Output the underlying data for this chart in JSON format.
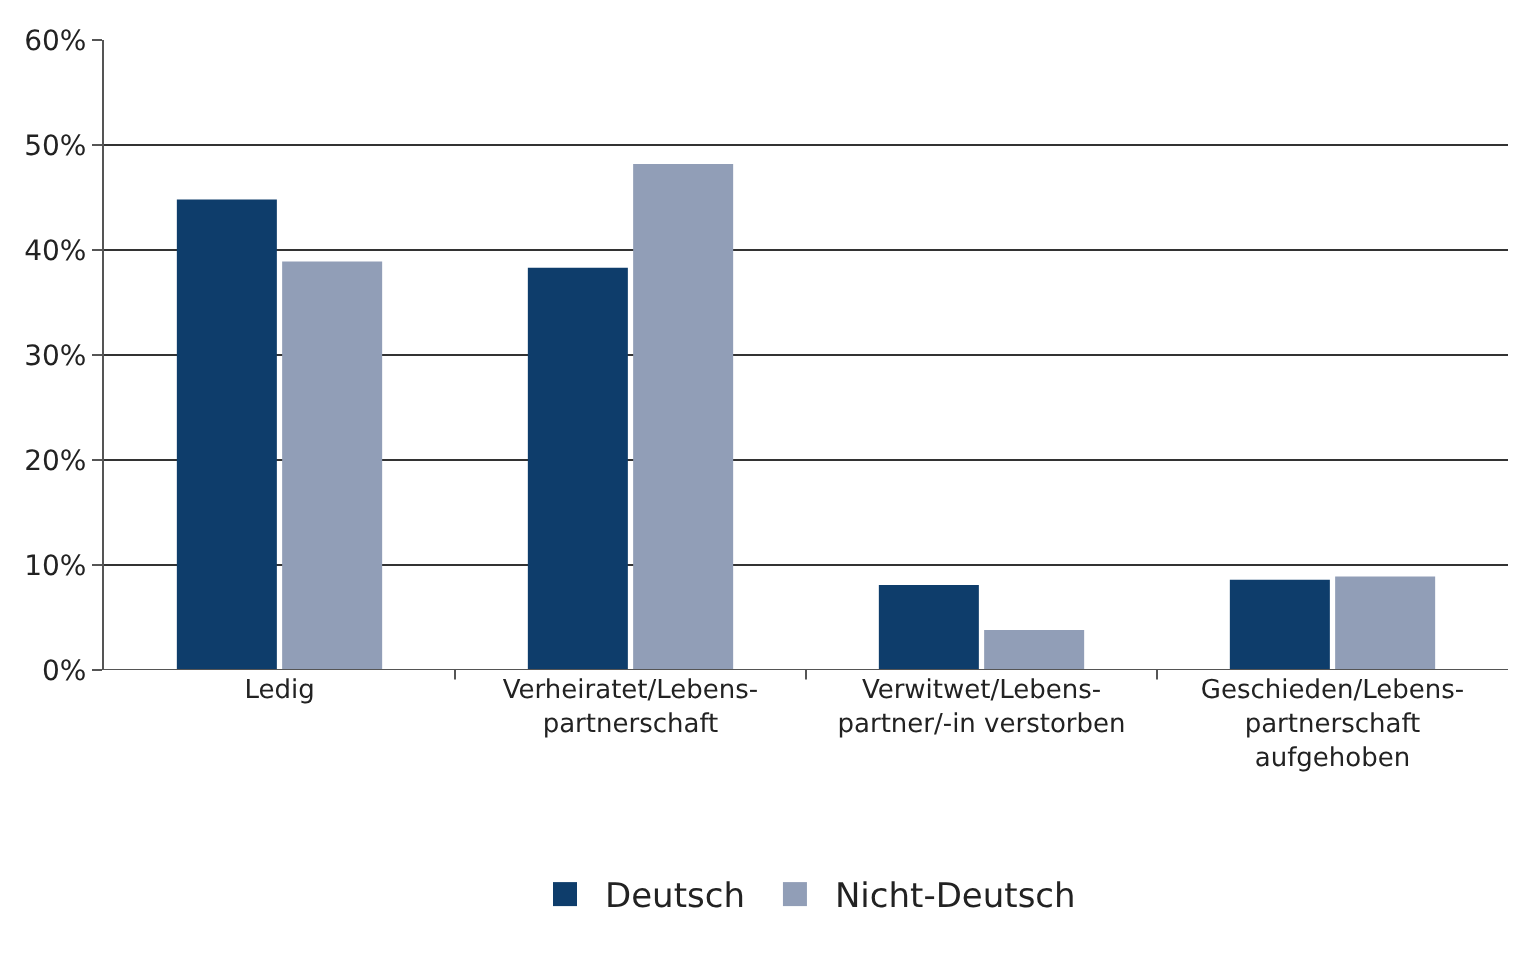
{
  "chart_data": {
    "type": "bar",
    "categories": [
      "Ledig",
      "Verheiratet/Lebens-\npartnerschaft",
      "Verwitwet/Lebens-\npartner/-in verstorben",
      "Geschieden/Lebens-\npartnerschaft\naufgehoben"
    ],
    "series": [
      {
        "name": "Deutsch",
        "color": "#0e3d6b",
        "values": [
          44.8,
          38.3,
          8.1,
          8.6
        ]
      },
      {
        "name": "Nicht-Deutsch",
        "color": "#919eb7",
        "values": [
          38.9,
          48.2,
          3.8,
          8.9
        ]
      }
    ],
    "ylim": [
      0,
      60
    ],
    "yticks": [
      {
        "value": 0,
        "label": "0%"
      },
      {
        "value": 10,
        "label": "10%"
      },
      {
        "value": 20,
        "label": "20%"
      },
      {
        "value": 30,
        "label": "30%"
      },
      {
        "value": 40,
        "label": "40%"
      },
      {
        "value": 50,
        "label": "50%"
      },
      {
        "value": 60,
        "label": "60%"
      }
    ],
    "grid": "y",
    "legend": "bottom"
  }
}
